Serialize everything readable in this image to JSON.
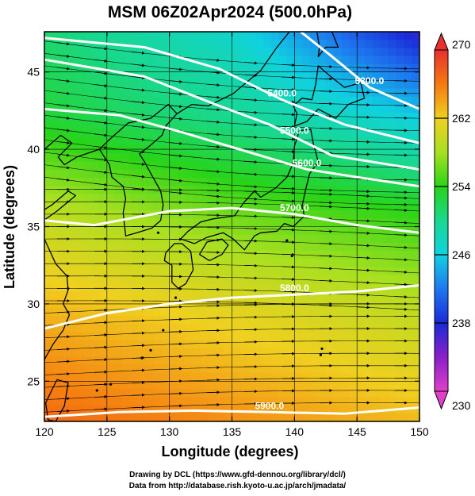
{
  "chart_data": {
    "type": "heatmap",
    "title": "MSM 06Z02Apr2024 (500.0hPa)",
    "xlabel": "Longitude (degrees)",
    "ylabel": "Latitude  (degrees)",
    "xlim": [
      120,
      150
    ],
    "ylim": [
      22.4,
      47.6
    ],
    "x_ticks": [
      "120",
      "125",
      "130",
      "135",
      "140",
      "145",
      "150"
    ],
    "y_ticks": [
      "25",
      "30",
      "35",
      "40",
      "45"
    ],
    "grid": true,
    "colorbar": {
      "min": 230,
      "max": 270,
      "tick_labels": [
        "270",
        "262",
        "254",
        "246",
        "238",
        "230"
      ],
      "stops": [
        {
          "value": 230,
          "color": "#e040c8"
        },
        {
          "value": 234,
          "color": "#8a20c8"
        },
        {
          "value": 238,
          "color": "#1a2ad8"
        },
        {
          "value": 242,
          "color": "#1e78f0"
        },
        {
          "value": 246,
          "color": "#10d2e0"
        },
        {
          "value": 250,
          "color": "#18d890"
        },
        {
          "value": 254,
          "color": "#28d418"
        },
        {
          "value": 258,
          "color": "#a8e020"
        },
        {
          "value": 262,
          "color": "#f0d020"
        },
        {
          "value": 266,
          "color": "#f57a10"
        },
        {
          "value": 270,
          "color": "#e83030"
        }
      ]
    },
    "contours": [
      {
        "label": "5300.0",
        "points": [
          [
            140.5,
            47.6
          ],
          [
            143,
            46
          ],
          [
            146,
            44
          ],
          [
            150,
            42.6
          ]
        ]
      },
      {
        "label": "5400.0",
        "points": [
          [
            120,
            47.2
          ],
          [
            128,
            46.6
          ],
          [
            134,
            45.2
          ],
          [
            139,
            43.2
          ],
          [
            144,
            41.6
          ],
          [
            150,
            40.4
          ]
        ]
      },
      {
        "label": "5500.0",
        "points": [
          [
            120,
            45.8
          ],
          [
            128,
            44.7
          ],
          [
            134,
            42.8
          ],
          [
            138,
            41.6
          ],
          [
            140,
            40.8
          ],
          [
            143,
            39.6
          ],
          [
            150,
            38.7
          ]
        ]
      },
      {
        "label": "5600.0",
        "points": [
          [
            120,
            42.6
          ],
          [
            126,
            42.2
          ],
          [
            131,
            41.1
          ],
          [
            136,
            39.9
          ],
          [
            141,
            38.7
          ],
          [
            145,
            38.2
          ],
          [
            150,
            37.6
          ]
        ]
      },
      {
        "label": "5700.0",
        "points": [
          [
            120,
            35.4
          ],
          [
            124,
            35.1
          ],
          [
            130,
            36.0
          ],
          [
            135,
            36.2
          ],
          [
            140,
            35.8
          ],
          [
            145,
            35.1
          ],
          [
            150,
            34.6
          ]
        ]
      },
      {
        "label": "5800.0",
        "points": [
          [
            120,
            28.4
          ],
          [
            125,
            29.4
          ],
          [
            130,
            30.0
          ],
          [
            135,
            30.4
          ],
          [
            140,
            30.6
          ],
          [
            145,
            30.8
          ],
          [
            150,
            31.2
          ]
        ]
      },
      {
        "label": "5900.0",
        "points": [
          [
            120,
            22.7
          ],
          [
            126,
            23.0
          ],
          [
            132,
            23.1
          ],
          [
            138,
            23.0
          ],
          [
            144,
            22.9
          ],
          [
            150,
            23.3
          ]
        ]
      }
    ],
    "temperature_field_nodes": [
      {
        "lon": 120,
        "lat": 47.6,
        "t": 251
      },
      {
        "lon": 135,
        "lat": 47.6,
        "t": 247
      },
      {
        "lon": 150,
        "lat": 47.6,
        "t": 237
      },
      {
        "lon": 120,
        "lat": 42,
        "t": 253
      },
      {
        "lon": 135,
        "lat": 42,
        "t": 250
      },
      {
        "lon": 150,
        "lat": 42,
        "t": 246
      },
      {
        "lon": 120,
        "lat": 36,
        "t": 259
      },
      {
        "lon": 135,
        "lat": 36,
        "t": 256
      },
      {
        "lon": 150,
        "lat": 36,
        "t": 254
      },
      {
        "lon": 120,
        "lat": 30,
        "t": 263
      },
      {
        "lon": 135,
        "lat": 30,
        "t": 261
      },
      {
        "lon": 150,
        "lat": 30,
        "t": 259
      },
      {
        "lon": 120,
        "lat": 22.4,
        "t": 267
      },
      {
        "lon": 135,
        "lat": 22.4,
        "t": 265
      },
      {
        "lon": 150,
        "lat": 22.4,
        "t": 263
      }
    ]
  },
  "footer": {
    "line1": "Drawing by DCL (https://www.gfd-dennou.org/library/dcl/)",
    "line2": "Data from http://database.rish.kyoto-u.ac.jp/arch/jmadata/"
  }
}
